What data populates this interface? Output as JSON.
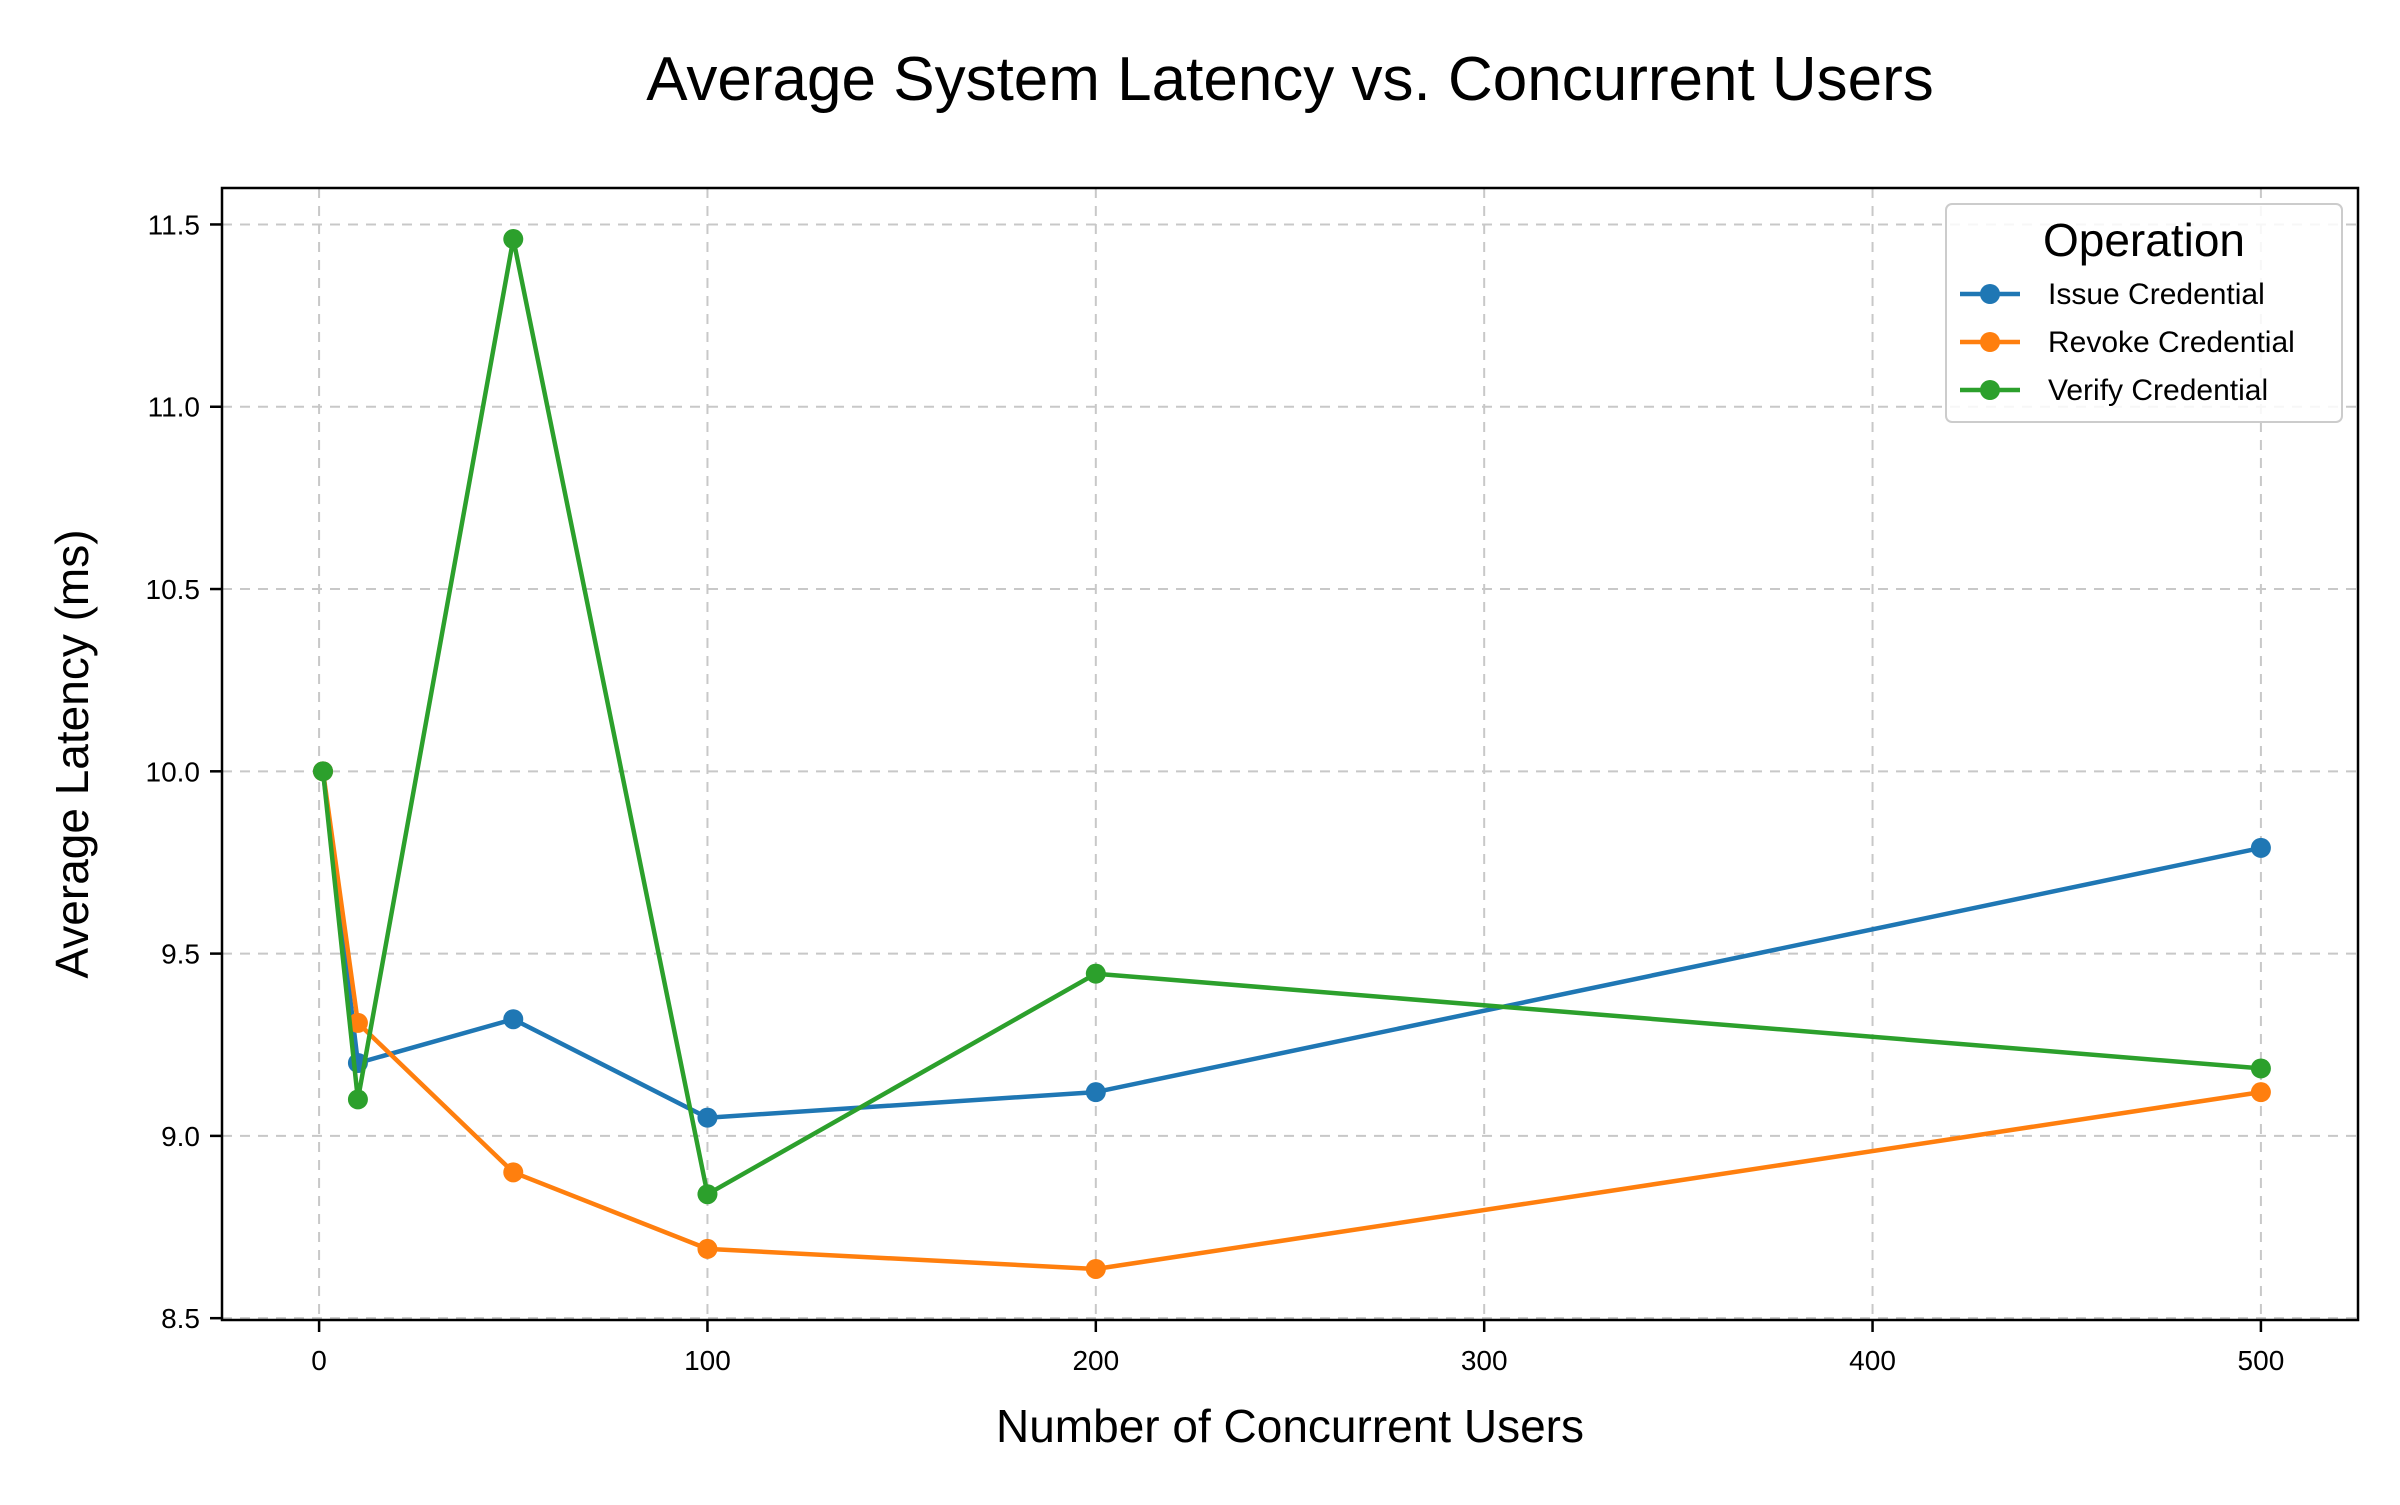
{
  "chart_data": {
    "type": "line",
    "title": "Average System Latency vs. Concurrent Users",
    "xlabel": "Number of Concurrent Users",
    "ylabel": "Average Latency (ms)",
    "xlim": [
      -25,
      525
    ],
    "ylim": [
      8.495,
      11.6
    ],
    "xticks": [
      0,
      100,
      200,
      300,
      400,
      500
    ],
    "yticks": [
      8.5,
      9.0,
      9.5,
      10.0,
      10.5,
      11.0,
      11.5
    ],
    "ytick_format": 1,
    "grid": true,
    "legend": {
      "title": "Operation",
      "placement": "top-right"
    },
    "series": [
      {
        "name": "Issue Credential",
        "color": "#1f77b4",
        "x": [
          1,
          10,
          50,
          100,
          200,
          500
        ],
        "y": [
          10.0,
          9.2,
          9.32,
          9.05,
          9.12,
          9.79
        ]
      },
      {
        "name": "Revoke Credential",
        "color": "#ff7f0e",
        "x": [
          1,
          10,
          50,
          100,
          200,
          500
        ],
        "y": [
          10.0,
          9.31,
          8.9,
          8.69,
          8.635,
          9.12
        ]
      },
      {
        "name": "Verify Credential",
        "color": "#2ca02c",
        "x": [
          1,
          10,
          50,
          100,
          200,
          500
        ],
        "y": [
          10.0,
          9.1,
          11.46,
          8.84,
          9.445,
          9.185
        ]
      }
    ]
  }
}
